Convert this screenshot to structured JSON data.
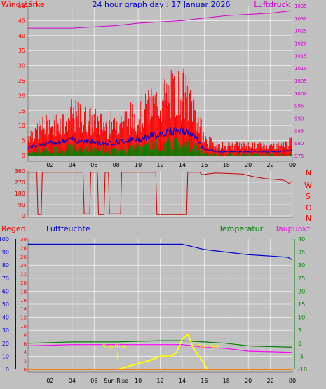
{
  "header": {
    "left": "Windstärke",
    "center": "24 hour graph day : 17 Januar 2026",
    "right": "Luftdruck"
  },
  "panel2_labels": [
    "N",
    "W",
    "S",
    "O",
    "N"
  ],
  "section3": {
    "regen": "Regen",
    "luftfeuchte": "Luftfeuchte",
    "temperatur": "Temperatur",
    "taupunkt": "Taupunkt"
  },
  "annotations": {
    "sun_rise": "Sun Rise",
    "sun_set": "Sun Set",
    "sun_rise_x_label": "Sun Rise"
  },
  "colors": {
    "wind": "#ff0000",
    "gust": "#ff0000",
    "wind_avg": "#0000cc",
    "wind_low": "#008000",
    "pressure": "#cc00cc",
    "direction": "#cc0000",
    "humidity": "#0000cc",
    "temperature": "#008000",
    "dewpoint": "#ff00ff",
    "solar": "#ffff00",
    "rain": "#ff0000",
    "grid": "#ffffff",
    "plot_bg": "#c0c0c0"
  },
  "chart_data": [
    {
      "type": "bar",
      "name": "wind_pressure",
      "x_ticks": [
        "02",
        "04",
        "06",
        "08",
        "10",
        "12",
        "14",
        "16",
        "18",
        "20",
        "22",
        "00"
      ],
      "y_left_ticks": [
        0,
        5,
        10,
        15,
        20,
        25,
        30,
        35,
        40,
        45,
        50
      ],
      "y_right_ticks": [
        975,
        980,
        985,
        990,
        995,
        1000,
        1005,
        1010,
        1015,
        1020,
        1025,
        1030,
        1035
      ],
      "ylim_left": [
        0,
        50
      ],
      "ylim_right": [
        975,
        1035
      ],
      "series": [
        {
          "name": "Windstärke",
          "x": [
            0,
            1,
            2,
            3,
            4,
            5,
            6,
            7,
            8,
            9,
            10,
            11,
            12,
            13,
            14,
            15,
            16,
            17,
            18,
            19,
            20,
            21,
            22,
            23,
            24
          ],
          "values": [
            6,
            8,
            9,
            10,
            12,
            11,
            10,
            9,
            10,
            11,
            12,
            14,
            16,
            18,
            19,
            15,
            5,
            3,
            3,
            3,
            3,
            3,
            3,
            3,
            4
          ]
        },
        {
          "name": "Luftdruck",
          "x": [
            0,
            2,
            4,
            6,
            8,
            10,
            12,
            14,
            16,
            18,
            20,
            22,
            24
          ],
          "values": [
            1026,
            1026,
            1026,
            1026.5,
            1027,
            1028,
            1028.5,
            1029,
            1030,
            1031,
            1031.5,
            1032,
            1033
          ]
        }
      ]
    },
    {
      "type": "line",
      "name": "wind_direction",
      "y_ticks": [
        0,
        90,
        180,
        270,
        360
      ],
      "ylim": [
        0,
        360
      ],
      "x": [
        0,
        0.8,
        0.9,
        1.2,
        1.3,
        5.0,
        5.1,
        5.6,
        5.7,
        6.3,
        6.4,
        6.9,
        7.0,
        7.3,
        7.4,
        8.4,
        8.5,
        11.6,
        11.7,
        14.4,
        14.5,
        15.6,
        15.8,
        17.0,
        18.5,
        19.5,
        20.2,
        20.8,
        21.5,
        22.2,
        22.8,
        23.3,
        23.7,
        24
      ],
      "values": [
        350,
        350,
        10,
        10,
        350,
        350,
        15,
        15,
        350,
        350,
        10,
        10,
        350,
        350,
        15,
        15,
        350,
        350,
        10,
        10,
        350,
        350,
        330,
        345,
        340,
        335,
        320,
        310,
        300,
        295,
        290,
        285,
        260,
        280
      ]
    },
    {
      "type": "line",
      "name": "humidity_temperature",
      "x_ticks": [
        "02",
        "04",
        "06",
        "Sun Rise",
        "10",
        "12",
        "14",
        "16",
        "18",
        "20",
        "22",
        "00"
      ],
      "y_left_ticks": [
        0,
        10,
        20,
        30,
        40,
        50,
        60,
        70,
        80,
        90,
        100
      ],
      "y_rain_ticks": [
        0,
        2,
        4,
        6,
        8,
        10,
        12,
        14,
        16,
        18,
        20,
        22,
        24,
        26,
        28,
        30
      ],
      "y_right_ticks": [
        -10,
        -5,
        0,
        5,
        10,
        15,
        20,
        25,
        30,
        35,
        40
      ],
      "series": [
        {
          "name": "Luftfeuchte",
          "x": [
            0,
            4,
            8,
            12,
            14,
            15,
            16,
            18,
            20,
            22,
            23.6,
            24
          ],
          "values": [
            96,
            96,
            96,
            96,
            96,
            94,
            92,
            90,
            88,
            87,
            86,
            84
          ]
        },
        {
          "name": "Temperatur",
          "x": [
            0,
            4,
            8,
            12,
            14,
            16,
            18,
            20,
            24
          ],
          "values": [
            0,
            0.5,
            0.5,
            1,
            1,
            0.5,
            0,
            -1,
            -1.5
          ]
        },
        {
          "name": "Taupunkt",
          "x": [
            0,
            4,
            8,
            12,
            14,
            16,
            18,
            20,
            24
          ],
          "values": [
            -1,
            -0.5,
            -0.5,
            -0.5,
            -0.5,
            -1.5,
            -2,
            -3,
            -3.5
          ]
        },
        {
          "name": "Solar",
          "x": [
            8.2,
            9.5,
            11,
            12,
            13,
            13.5,
            14,
            14.5,
            15,
            15.8,
            16.3
          ],
          "values": [
            0,
            1,
            2,
            3,
            3,
            4,
            7,
            8,
            5,
            2,
            0
          ]
        },
        {
          "name": "Regen",
          "x": [
            0,
            24
          ],
          "values": [
            0,
            0
          ]
        }
      ],
      "annotations": [
        {
          "text": "Sun Rise",
          "x": 8.1
        },
        {
          "text": "Sun Set",
          "x": 16.3
        }
      ]
    }
  ]
}
